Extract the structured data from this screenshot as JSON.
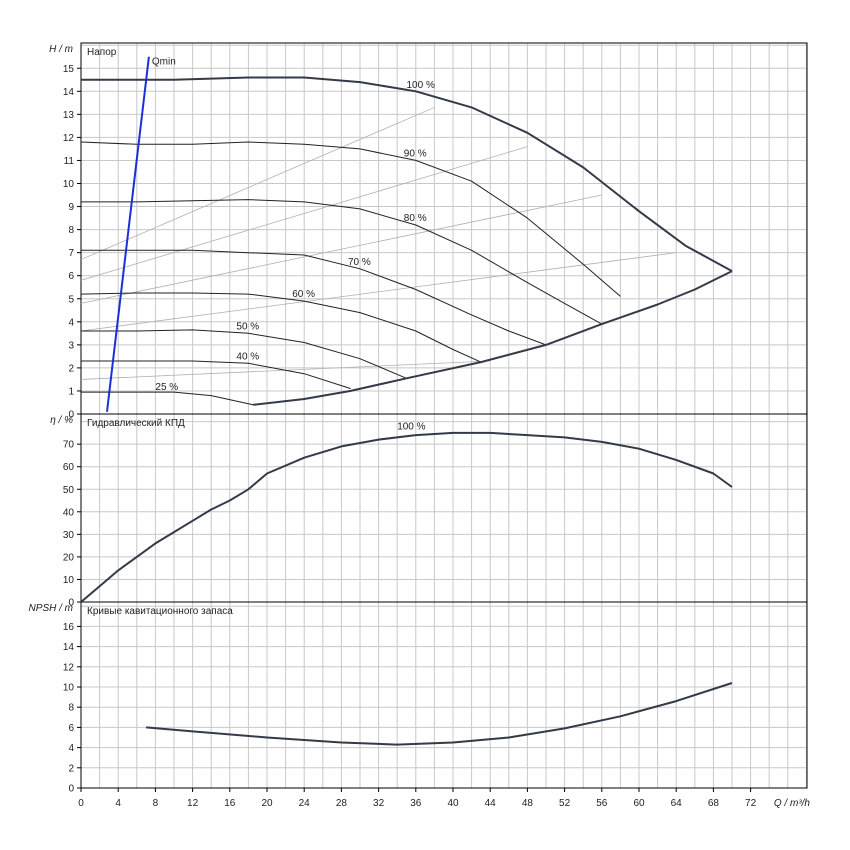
{
  "chart_data": [
    {
      "type": "line",
      "title": "Напор",
      "ylabel": "H / m",
      "xlim": [
        0,
        78
      ],
      "ylim": [
        0,
        16
      ],
      "grid": true,
      "y_ticks": [
        0,
        1,
        2,
        3,
        4,
        5,
        6,
        7,
        8,
        9,
        10,
        11,
        12,
        13,
        14,
        15
      ],
      "series": [
        {
          "name": "100 %",
          "x": [
            0,
            10,
            18,
            24,
            30,
            36,
            42,
            48,
            54,
            60,
            65,
            70
          ],
          "y": [
            14.5,
            14.5,
            14.6,
            14.6,
            14.4,
            14.0,
            13.3,
            12.2,
            10.7,
            8.8,
            7.3,
            6.2
          ]
        },
        {
          "name": "90 %",
          "x": [
            0,
            6,
            12,
            18,
            24,
            30,
            36,
            42,
            48,
            54,
            58
          ],
          "y": [
            11.8,
            11.7,
            11.7,
            11.8,
            11.7,
            11.5,
            11.0,
            10.1,
            8.5,
            6.5,
            5.1
          ]
        },
        {
          "name": "80 %",
          "x": [
            0,
            6,
            12,
            18,
            24,
            30,
            36,
            42,
            48,
            52,
            56
          ],
          "y": [
            9.2,
            9.2,
            9.25,
            9.3,
            9.2,
            8.9,
            8.2,
            7.1,
            5.7,
            4.8,
            3.9
          ]
        },
        {
          "name": "70 %",
          "x": [
            0,
            6,
            12,
            18,
            24,
            30,
            36,
            42,
            46,
            50
          ],
          "y": [
            7.1,
            7.1,
            7.1,
            7.0,
            6.9,
            6.3,
            5.4,
            4.3,
            3.6,
            3.0
          ]
        },
        {
          "name": "60 %",
          "x": [
            0,
            6,
            12,
            18,
            24,
            30,
            36,
            40,
            43
          ],
          "y": [
            5.2,
            5.25,
            5.25,
            5.2,
            4.9,
            4.4,
            3.6,
            2.8,
            2.25
          ]
        },
        {
          "name": "50 %",
          "x": [
            0,
            6,
            12,
            18,
            24,
            30,
            35
          ],
          "y": [
            3.6,
            3.6,
            3.65,
            3.5,
            3.1,
            2.4,
            1.55
          ]
        },
        {
          "name": "40 %",
          "x": [
            0,
            6,
            12,
            18,
            24,
            29
          ],
          "y": [
            2.3,
            2.3,
            2.3,
            2.2,
            1.75,
            1.1
          ]
        },
        {
          "name": "25 %",
          "x": [
            0,
            6,
            10,
            14,
            18.5,
            24,
            29
          ],
          "y": [
            0.95,
            0.95,
            0.95,
            0.8,
            0.4,
            0.65,
            1.0
          ]
        },
        {
          "name": "",
          "x": [
            18.5,
            24,
            29,
            35,
            43,
            50,
            56,
            62,
            66,
            70
          ],
          "y": [
            0.4,
            0.65,
            1.0,
            1.55,
            2.25,
            3.0,
            3.9,
            4.75,
            5.4,
            6.2
          ]
        },
        {
          "name": "Qmin",
          "x": [
            2.8,
            7.3
          ],
          "y": [
            0.1,
            15.5
          ]
        }
      ],
      "efficiency_lines": [
        {
          "x": [
            0,
            38
          ],
          "y": [
            6.7,
            13.3
          ]
        },
        {
          "x": [
            0,
            48
          ],
          "y": [
            5.8,
            11.6
          ]
        },
        {
          "x": [
            0,
            56
          ],
          "y": [
            4.8,
            9.5
          ]
        },
        {
          "x": [
            0,
            64
          ],
          "y": [
            3.6,
            7.0
          ]
        },
        {
          "x": [
            0,
            44
          ],
          "y": [
            1.5,
            2.3
          ]
        }
      ]
    },
    {
      "type": "line",
      "title": "Гидравлический КПД",
      "ylabel": "η / %",
      "xlim": [
        0,
        78
      ],
      "ylim": [
        0,
        80
      ],
      "grid": true,
      "y_ticks": [
        0,
        10,
        20,
        30,
        40,
        50,
        60,
        70
      ],
      "series": [
        {
          "name": "100 %",
          "x": [
            0,
            2,
            4,
            6,
            8,
            10,
            12,
            14,
            16,
            18,
            20,
            24,
            28,
            32,
            36,
            40,
            44,
            48,
            52,
            56,
            60,
            64,
            68,
            70
          ],
          "y": [
            0,
            7,
            14,
            20,
            26,
            31,
            36,
            41,
            45,
            50,
            57,
            64,
            69,
            72,
            74,
            75,
            75,
            74,
            73,
            71,
            68,
            63,
            57,
            51
          ]
        }
      ]
    },
    {
      "type": "line",
      "title": "Кривые кавитационного запаса",
      "ylabel": "NPSH / m",
      "xlabel": "Q / m³/h",
      "xlim": [
        0,
        78
      ],
      "ylim": [
        0,
        18
      ],
      "grid": true,
      "y_ticks": [
        0,
        2,
        4,
        6,
        8,
        10,
        12,
        14,
        16
      ],
      "x_ticks": [
        0,
        4,
        8,
        12,
        16,
        20,
        24,
        28,
        32,
        36,
        40,
        44,
        48,
        52,
        56,
        60,
        64,
        68,
        72
      ],
      "series": [
        {
          "name": "",
          "x": [
            7,
            12,
            20,
            28,
            34,
            40,
            46,
            52,
            58,
            64,
            70
          ],
          "y": [
            6.0,
            5.6,
            5.0,
            4.5,
            4.3,
            4.5,
            5.0,
            5.9,
            7.1,
            8.6,
            10.4
          ]
        }
      ]
    }
  ]
}
